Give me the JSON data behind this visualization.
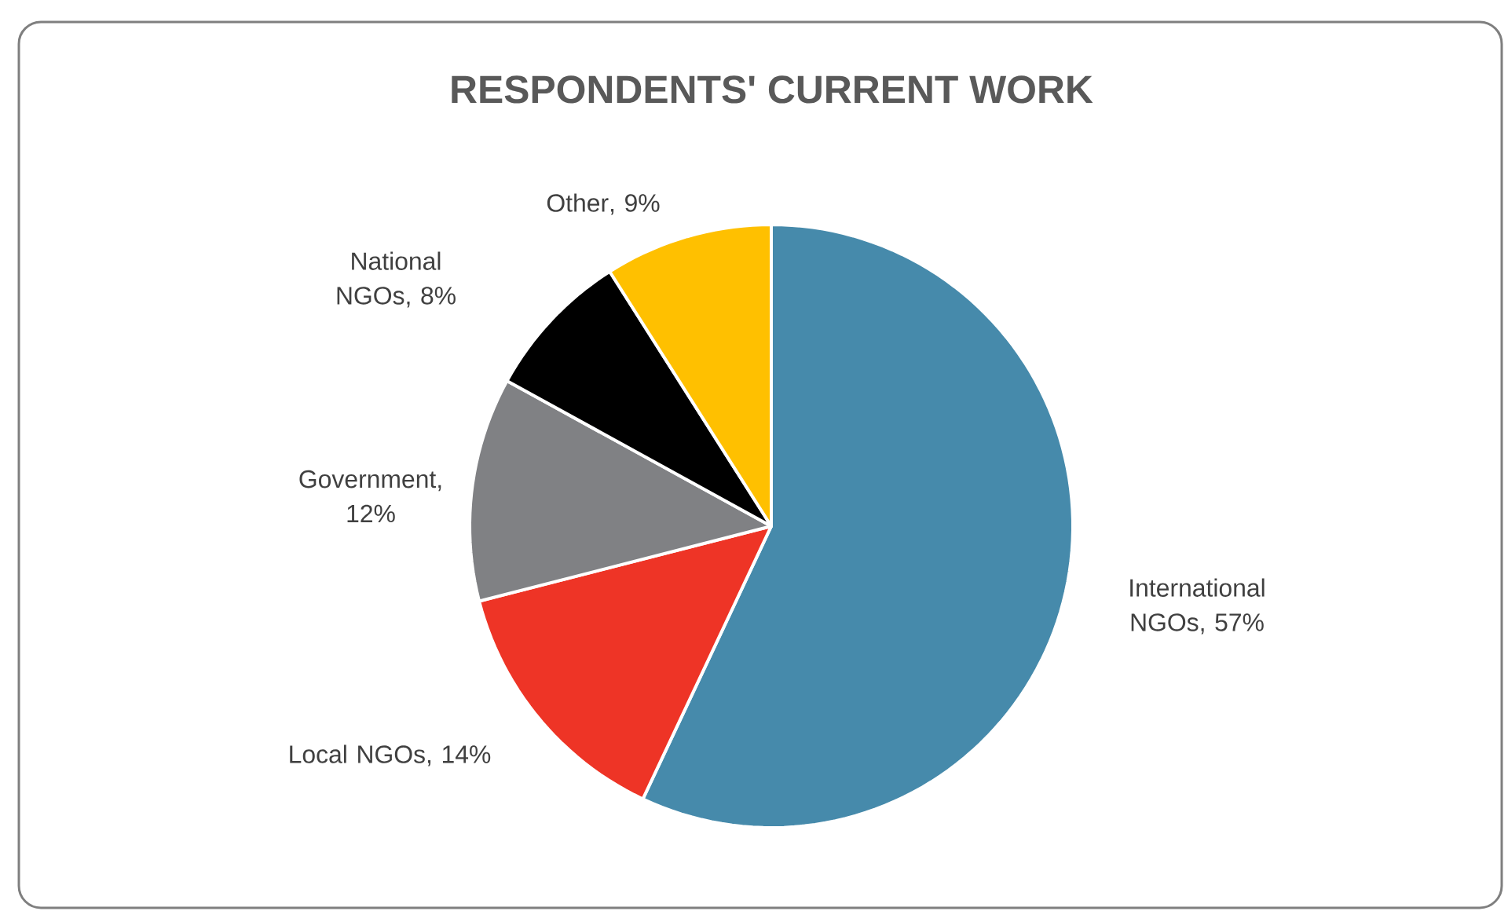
{
  "chart_data": {
    "type": "pie",
    "title": "RESPONDENTS' CURRENT WORK",
    "categories": [
      "International NGOs",
      "Local NGOs",
      "Government",
      "National NGOs",
      "Other"
    ],
    "values": [
      57,
      14,
      12,
      8,
      9
    ],
    "value_labels": [
      ", 57%",
      ", 14%",
      ", 12%",
      ", 8%",
      ", 9%"
    ],
    "colors": [
      "#468aab",
      "#ee3426",
      "#808184",
      "#000000",
      "#ffc000"
    ]
  }
}
